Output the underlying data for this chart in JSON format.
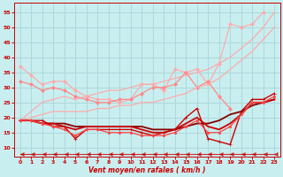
{
  "xlabel": "Vent moyen/en rafales ( km/h )",
  "background_color": "#c8eef0",
  "grid_color": "#aed8da",
  "text_color": "#cc0000",
  "x": [
    0,
    1,
    2,
    3,
    4,
    5,
    6,
    7,
    8,
    9,
    10,
    11,
    12,
    13,
    14,
    15,
    16,
    17,
    18,
    19,
    20,
    21,
    22,
    23
  ],
  "yticks": [
    10,
    15,
    20,
    25,
    30,
    35,
    40,
    45,
    50,
    55
  ],
  "ylim": [
    7,
    58
  ],
  "xlim": [
    -0.5,
    23.5
  ],
  "lines": [
    {
      "y": [
        37,
        34,
        31,
        32,
        32,
        29,
        27,
        26,
        26,
        25,
        26,
        31,
        31,
        29,
        36,
        35,
        36,
        31,
        38,
        51,
        50,
        51,
        55,
        null
      ],
      "color": "#ffaaaa",
      "lw": 0.9,
      "marker": "D",
      "ms": 2.0,
      "alpha": 1.0,
      "linestyle": "-"
    },
    {
      "y": [
        19,
        22,
        25,
        26,
        27,
        26,
        27,
        28,
        29,
        29,
        30,
        31,
        31,
        32,
        33,
        34,
        35,
        36,
        38,
        40,
        43,
        46,
        50,
        55
      ],
      "color": "#ffaaaa",
      "lw": 0.9,
      "marker": null,
      "ms": 0,
      "alpha": 1.0,
      "linestyle": "-"
    },
    {
      "y": [
        32,
        31,
        29,
        30,
        29,
        27,
        26,
        25,
        25,
        26,
        26,
        28,
        30,
        30,
        31,
        35,
        30,
        32,
        27,
        23,
        null,
        null,
        null,
        null
      ],
      "color": "#ff8888",
      "lw": 0.9,
      "marker": "D",
      "ms": 2.0,
      "alpha": 1.0,
      "linestyle": "-"
    },
    {
      "y": [
        19,
        20,
        21,
        22,
        22,
        22,
        22,
        23,
        23,
        24,
        24,
        25,
        25,
        26,
        27,
        28,
        30,
        31,
        33,
        36,
        39,
        42,
        46,
        50
      ],
      "color": "#ffaaaa",
      "lw": 0.9,
      "marker": null,
      "ms": 0,
      "alpha": 1.0,
      "linestyle": "-"
    },
    {
      "y": [
        19,
        19,
        19,
        17,
        17,
        13,
        16,
        16,
        16,
        16,
        16,
        15,
        14,
        15,
        16,
        20,
        23,
        13,
        12,
        11,
        22,
        26,
        26,
        28
      ],
      "color": "#cc0000",
      "lw": 1.0,
      "marker": "+",
      "ms": 3.5,
      "alpha": 1.0,
      "linestyle": "-"
    },
    {
      "y": [
        19,
        19,
        18,
        18,
        18,
        17,
        17,
        17,
        17,
        17,
        17,
        17,
        16,
        16,
        16,
        17,
        18,
        18,
        19,
        21,
        22,
        24,
        25,
        26
      ],
      "color": "#880000",
      "lw": 1.3,
      "marker": null,
      "ms": 0,
      "alpha": 1.0,
      "linestyle": "-"
    },
    {
      "y": [
        19,
        19,
        18,
        18,
        17,
        16,
        17,
        17,
        17,
        17,
        17,
        16,
        15,
        15,
        16,
        18,
        20,
        17,
        16,
        18,
        21,
        25,
        25,
        26
      ],
      "color": "#cc0000",
      "lw": 1.3,
      "marker": null,
      "ms": 0,
      "alpha": 1.0,
      "linestyle": "-"
    },
    {
      "y": [
        19,
        19,
        18,
        17,
        16,
        14,
        16,
        16,
        15,
        15,
        15,
        14,
        14,
        14,
        15,
        17,
        19,
        15,
        15,
        17,
        21,
        25,
        25,
        27
      ],
      "color": "#ff4444",
      "lw": 0.9,
      "marker": "s",
      "ms": 1.8,
      "alpha": 1.0,
      "linestyle": "-"
    },
    {
      "y": [
        8,
        8,
        8,
        8,
        8,
        8,
        8,
        8,
        8,
        8,
        8,
        8,
        8,
        8,
        8,
        8,
        8,
        8,
        8,
        8,
        8,
        8,
        8,
        8
      ],
      "color": "#cc0000",
      "lw": 0.8,
      "marker": 4,
      "ms": 3.5,
      "alpha": 0.8,
      "linestyle": "-"
    }
  ]
}
